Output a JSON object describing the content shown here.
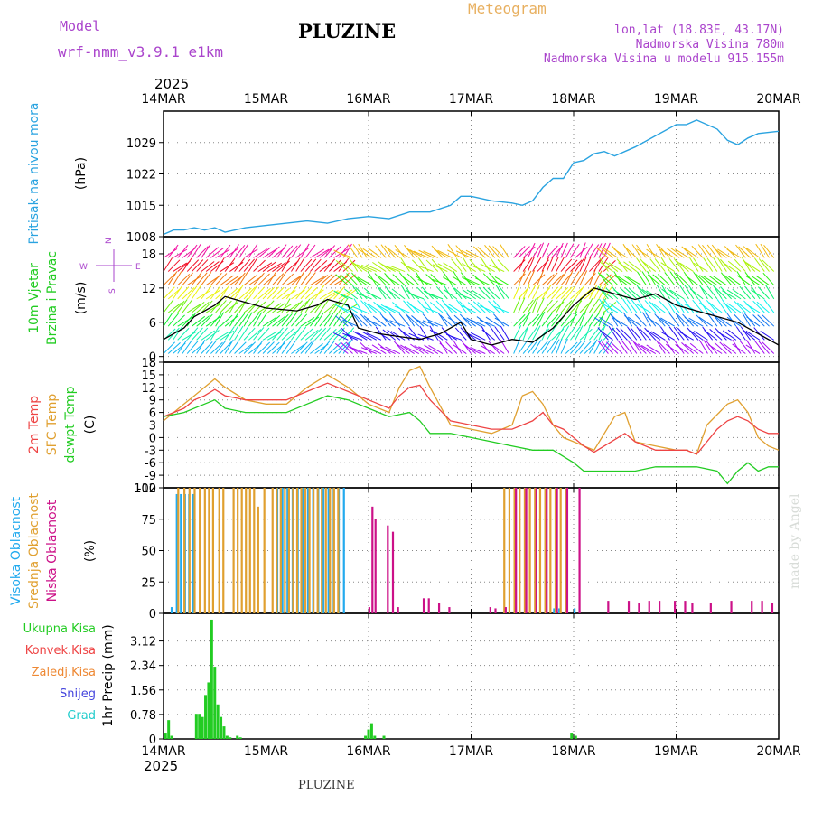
{
  "header": {
    "model_label": "Model",
    "model_name": "wrf-nmm_v3.9.1 e1km",
    "station": "PLUZINE",
    "product": "Meteogram",
    "lonlat": "lon,lat (18.83E, 43.17N)",
    "altitude": "Nadmorska Visina 780m",
    "model_altitude": "Nadmorska Visina u modelu 915.155m",
    "footer_station": "PLUZINE",
    "watermark": "made by Angel"
  },
  "colors": {
    "pressure": "#2aa3e0",
    "t2m": "#ee4444",
    "sfc": "#e0a030",
    "dewpt": "#22cc22",
    "cloud_high": "#22aaee",
    "cloud_mid": "#e0a030",
    "cloud_low": "#cc1188",
    "precip_total": "#22cc22",
    "precip_conv": "#ee4444",
    "precip_frz": "#ee8833",
    "snow": "#4444dd",
    "hail": "#22cccc",
    "header_purple": "#aa44cc",
    "meteogram_orange": "#e8b060"
  },
  "chart_data": [
    {
      "type": "line",
      "panel": "pressure",
      "ylabel_1": "Pritisak na nivou mora",
      "ylabel_2": "(hPa)",
      "ylim": [
        1008,
        1036
      ],
      "yticks": [
        "1008",
        "1015",
        "1022",
        "1029"
      ],
      "year": "2025",
      "x_ticks": [
        "14MAR",
        "15MAR",
        "16MAR",
        "17MAR",
        "18MAR",
        "19MAR",
        "20MAR"
      ],
      "series": [
        {
          "x": [
            0,
            0.1,
            0.2,
            0.3,
            0.4,
            0.5,
            0.6,
            0.8,
            1.0,
            1.2,
            1.4,
            1.6,
            1.8,
            2.0,
            2.2,
            2.4,
            2.6,
            2.8,
            2.9,
            3.0,
            3.2,
            3.4,
            3.5,
            3.6,
            3.7,
            3.8,
            3.9,
            4.0,
            4.1,
            4.2,
            4.3,
            4.4,
            4.6,
            4.8,
            5.0,
            5.1,
            5.2,
            5.4,
            5.5,
            5.6,
            5.7,
            5.8,
            6.0
          ],
          "values": [
            1008.5,
            1009.5,
            1009.5,
            1010,
            1009.5,
            1010,
            1009,
            1010,
            1010.5,
            1011,
            1011.5,
            1011,
            1012,
            1012.5,
            1012,
            1013.5,
            1013.5,
            1015,
            1017,
            1017,
            1016,
            1015.5,
            1015,
            1016,
            1019,
            1021,
            1021,
            1024.5,
            1025,
            1026.5,
            1027,
            1026,
            1028,
            1030.5,
            1033,
            1033,
            1034,
            1032,
            1029.5,
            1028.5,
            1030,
            1031,
            1031.5
          ]
        }
      ]
    },
    {
      "type": "line",
      "panel": "wind",
      "ylabel_1": "10m Vjetar",
      "ylabel_2": "Brzina i Pravac",
      "ylabel_3": "(m/s)",
      "compass_n": "N",
      "compass_w": "W",
      "compass_e": "E",
      "compass_s": "S",
      "ylim": [
        -1,
        21
      ],
      "yticks": [
        "0",
        "6",
        "12",
        "18"
      ],
      "series": [
        {
          "name": "speed",
          "x": [
            0,
            0.2,
            0.3,
            0.5,
            0.6,
            0.8,
            1.0,
            1.3,
            1.5,
            1.6,
            1.8,
            1.9,
            2.1,
            2.3,
            2.5,
            2.7,
            2.9,
            3.0,
            3.2,
            3.4,
            3.6,
            3.8,
            4.0,
            4.2,
            4.4,
            4.6,
            4.8,
            5.0,
            5.2,
            5.4,
            5.6,
            5.8,
            5.9,
            6.0
          ],
          "values": [
            3,
            5,
            7,
            9,
            10.5,
            9.5,
            8.5,
            8,
            9,
            10,
            9,
            5,
            4,
            3.5,
            3,
            4,
            6,
            3,
            2,
            3,
            2.5,
            5,
            9,
            12,
            11,
            10,
            11,
            9,
            8,
            7,
            6,
            4,
            3,
            2
          ]
        }
      ]
    },
    {
      "type": "line",
      "panel": "temperature",
      "ylabel_1": "2m Temp",
      "ylabel_2": "SFC Temp",
      "ylabel_3": "dewpt Temp",
      "ylabel_4": "(C)",
      "ylim": [
        -12,
        18
      ],
      "yticks": [
        "-12",
        "-9",
        "-6",
        "-3",
        "0",
        "3",
        "6",
        "9",
        "12",
        "15",
        "18"
      ],
      "series": [
        {
          "name": "2m Temp",
          "x": [
            0,
            0.1,
            0.2,
            0.3,
            0.4,
            0.5,
            0.6,
            0.8,
            1.0,
            1.2,
            1.4,
            1.6,
            1.8,
            2.0,
            2.2,
            2.3,
            2.4,
            2.5,
            2.6,
            2.8,
            3.0,
            3.2,
            3.4,
            3.6,
            3.7,
            3.8,
            3.9,
            4.0,
            4.1,
            4.2,
            4.3,
            4.5,
            4.6,
            4.8,
            5.0,
            5.1,
            5.2,
            5.4,
            5.5,
            5.6,
            5.7,
            5.8,
            5.9,
            6.0
          ],
          "values": [
            5,
            6,
            7,
            9,
            10,
            11.5,
            10,
            9,
            9,
            9,
            11,
            13,
            11,
            9,
            7,
            10,
            12,
            12.5,
            9,
            4,
            3,
            2,
            2,
            4,
            6,
            3,
            2,
            0,
            -2,
            -3.5,
            -2,
            1,
            -1,
            -3,
            -3,
            -3,
            -4,
            2,
            4,
            5,
            4,
            2,
            1,
            1
          ]
        },
        {
          "name": "SFC Temp",
          "x": [
            0,
            0.1,
            0.2,
            0.3,
            0.4,
            0.5,
            0.6,
            0.8,
            1.0,
            1.2,
            1.4,
            1.6,
            1.8,
            2.0,
            2.2,
            2.3,
            2.4,
            2.5,
            2.6,
            2.8,
            3.0,
            3.2,
            3.4,
            3.5,
            3.6,
            3.7,
            3.8,
            3.9,
            4.0,
            4.1,
            4.2,
            4.4,
            4.5,
            4.6,
            4.8,
            5.0,
            5.1,
            5.2,
            5.3,
            5.5,
            5.6,
            5.7,
            5.8,
            5.9,
            6.0
          ],
          "values": [
            4,
            6,
            8,
            10,
            12,
            14,
            12,
            9,
            8,
            8,
            12,
            15,
            12,
            8,
            6,
            12,
            16,
            17,
            12,
            3,
            2,
            1,
            3,
            10,
            11,
            8,
            3,
            0,
            -1,
            -2,
            -3,
            5,
            6,
            -1,
            -2,
            -3,
            -3,
            -4,
            3,
            8,
            9,
            6,
            0,
            -2,
            -3
          ]
        },
        {
          "name": "dewpt Temp",
          "x": [
            0,
            0.2,
            0.4,
            0.5,
            0.6,
            0.8,
            1.0,
            1.2,
            1.4,
            1.6,
            1.8,
            2.0,
            2.2,
            2.4,
            2.5,
            2.6,
            2.8,
            3.0,
            3.2,
            3.4,
            3.6,
            3.8,
            4.0,
            4.1,
            4.2,
            4.4,
            4.6,
            4.8,
            5.0,
            5.2,
            5.4,
            5.5,
            5.6,
            5.7,
            5.8,
            5.9,
            6.0
          ],
          "values": [
            5,
            6,
            8,
            9,
            7,
            6,
            6,
            6,
            8,
            10,
            9,
            7,
            5,
            6,
            4,
            1,
            1,
            0,
            -1,
            -2,
            -3,
            -3,
            -6,
            -8,
            -8,
            -8,
            -8,
            -7,
            -7,
            -7,
            -8,
            -11,
            -8,
            -6,
            -8,
            -7,
            -7
          ]
        }
      ]
    },
    {
      "type": "bar",
      "panel": "clouds",
      "ylabel_1": "Visoka Oblacnost",
      "ylabel_2": "Srednja Oblacnost",
      "ylabel_3": "Niska Oblacnost",
      "ylabel_4": "(%)",
      "ylim": [
        0,
        100
      ],
      "yticks": [
        "0",
        "25",
        "50",
        "75",
        "100"
      ],
      "series": [
        {
          "name": "Visoka Oblacnost",
          "x": [
            0.07,
            0.12,
            0.16,
            0.2,
            0.24,
            0.28,
            1.1,
            1.15,
            1.2,
            1.25,
            1.3,
            1.35,
            1.4,
            1.45,
            1.5,
            1.55,
            1.6,
            1.65,
            1.7,
            1.75,
            3.8,
            3.85,
            4.0
          ],
          "values": [
            5,
            95,
            95,
            95,
            95,
            95,
            100,
            100,
            100,
            100,
            100,
            100,
            100,
            100,
            100,
            100,
            100,
            100,
            100,
            100,
            4,
            4,
            4
          ]
        },
        {
          "name": "Srednja Oblacnost",
          "x": [
            0.12,
            0.18,
            0.23,
            0.28,
            0.33,
            0.38,
            0.42,
            0.46,
            0.52,
            0.56,
            0.66,
            0.7,
            0.74,
            0.78,
            0.82,
            0.86,
            0.9,
            0.96,
            1.04,
            1.08,
            1.12,
            1.16,
            1.2,
            1.24,
            1.28,
            1.32,
            1.36,
            1.4,
            1.44,
            1.48,
            1.52,
            1.56,
            1.6,
            1.64,
            1.68,
            3.3,
            3.35,
            3.4,
            3.45,
            3.5,
            3.55,
            3.6,
            3.65,
            3.7,
            3.75,
            3.8,
            3.85,
            3.9
          ],
          "values": [
            100,
            100,
            100,
            100,
            100,
            100,
            100,
            100,
            100,
            100,
            100,
            100,
            100,
            100,
            100,
            100,
            85,
            100,
            100,
            100,
            100,
            100,
            100,
            100,
            100,
            100,
            100,
            100,
            100,
            100,
            100,
            100,
            100,
            100,
            100,
            100,
            100,
            100,
            100,
            100,
            100,
            100,
            100,
            100,
            100,
            100,
            100,
            100
          ]
        },
        {
          "name": "Niska Oblacnost",
          "x": [
            1.97,
            2.0,
            2.03,
            2.15,
            2.2,
            2.25,
            2.5,
            2.55,
            2.65,
            2.75,
            3.15,
            3.2,
            3.3,
            3.4,
            3.5,
            3.6,
            3.7,
            3.8,
            3.9,
            4.02,
            4.3,
            4.5,
            4.6,
            4.7,
            4.8,
            4.95,
            5.05,
            5.12,
            5.3,
            5.5,
            5.7,
            5.8,
            5.9
          ],
          "values": [
            5,
            85,
            75,
            70,
            65,
            5,
            12,
            12,
            8,
            5,
            5,
            4,
            5,
            100,
            100,
            100,
            100,
            100,
            100,
            100,
            10,
            10,
            8,
            10,
            10,
            10,
            10,
            8,
            8,
            10,
            10,
            10,
            8
          ]
        }
      ]
    },
    {
      "type": "bar",
      "panel": "precip",
      "ylabel_1": "1hr Precip (mm)",
      "legend": [
        "Ukupna Kisa",
        "Konvek.Kisa",
        "Zaledj.Kisa",
        "Snijeg",
        "Grad"
      ],
      "ylim": [
        0,
        4
      ],
      "yticks": [
        "0",
        "0.78",
        "1.56",
        "2.34",
        "3.12"
      ],
      "year": "2025",
      "x_ticks": [
        "14MAR",
        "15MAR",
        "16MAR",
        "17MAR",
        "18MAR",
        "19MAR",
        "20MAR"
      ],
      "series": [
        {
          "name": "Ukupna Kisa",
          "x": [
            0.02,
            0.05,
            0.08,
            0.32,
            0.35,
            0.38,
            0.41,
            0.44,
            0.47,
            0.5,
            0.53,
            0.56,
            0.59,
            0.62,
            0.65,
            0.72,
            0.75,
            1.97,
            2.0,
            2.03,
            2.06,
            2.15,
            3.98,
            4.02
          ],
          "values": [
            0.2,
            0.6,
            0.1,
            0.8,
            0.8,
            0.7,
            1.4,
            1.8,
            3.8,
            2.3,
            1.1,
            0.7,
            0.4,
            0.1,
            0.05,
            0.1,
            0.05,
            0.1,
            0.3,
            0.5,
            0.1,
            0.1,
            0.2,
            0.1
          ]
        }
      ]
    }
  ]
}
